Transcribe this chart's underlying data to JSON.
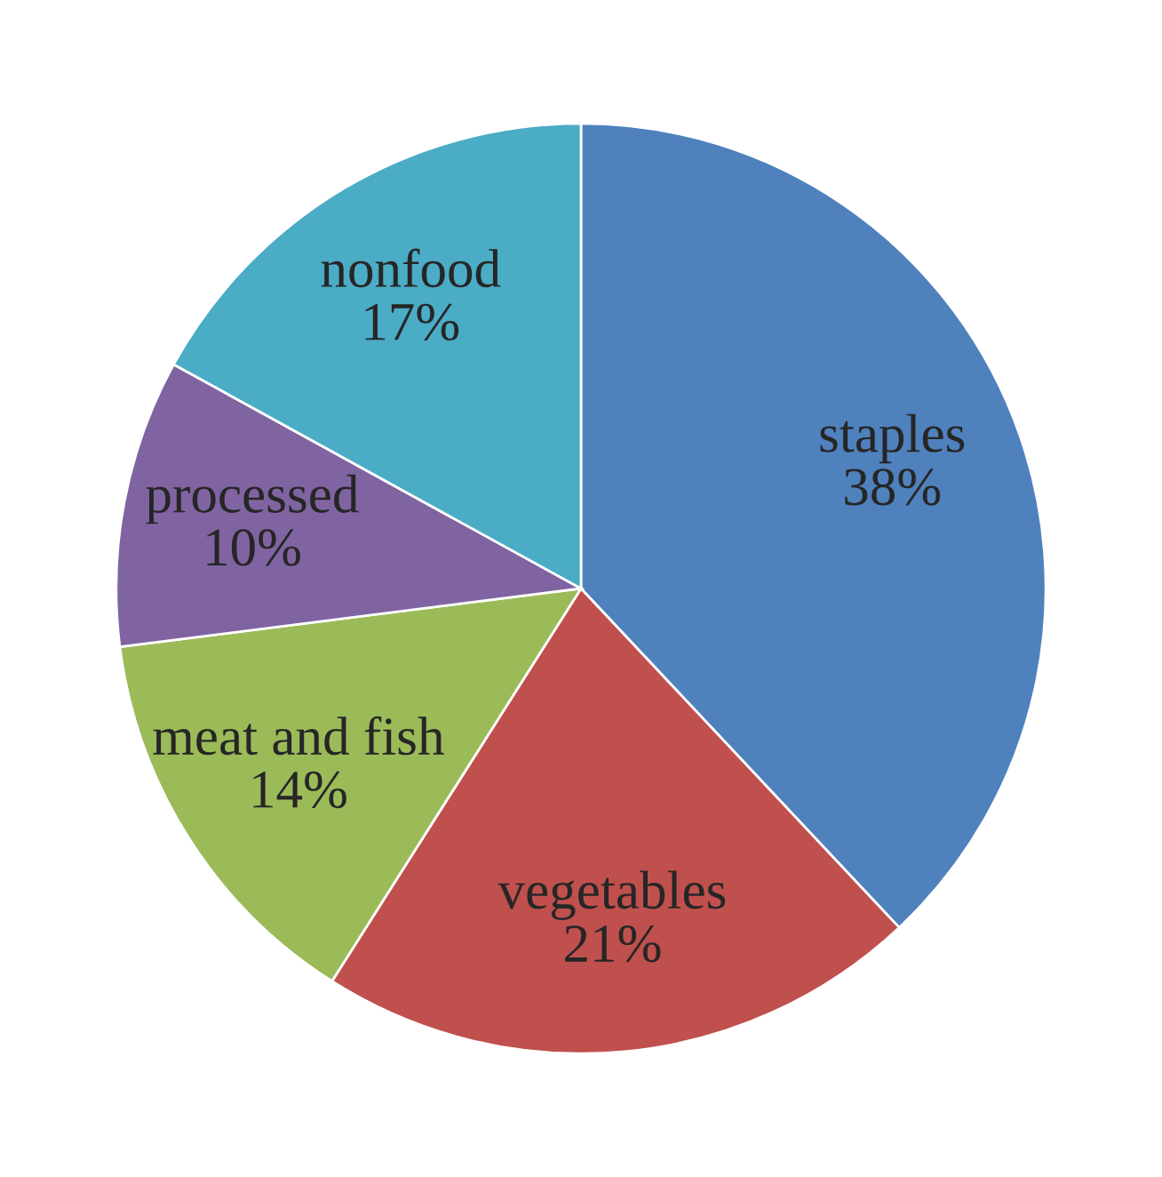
{
  "chart_data": {
    "type": "pie",
    "categories": [
      "staples",
      "vegetables",
      "meat and fish",
      "processed",
      "nonfood"
    ],
    "values": [
      38,
      21,
      14,
      10,
      17
    ],
    "value_labels": [
      "38%",
      "21%",
      "14%",
      "10%",
      "17%"
    ],
    "colors": [
      "#4f81bd",
      "#c0504d",
      "#9bbb59",
      "#8064a2",
      "#4bacc6"
    ],
    "legend": false
  }
}
